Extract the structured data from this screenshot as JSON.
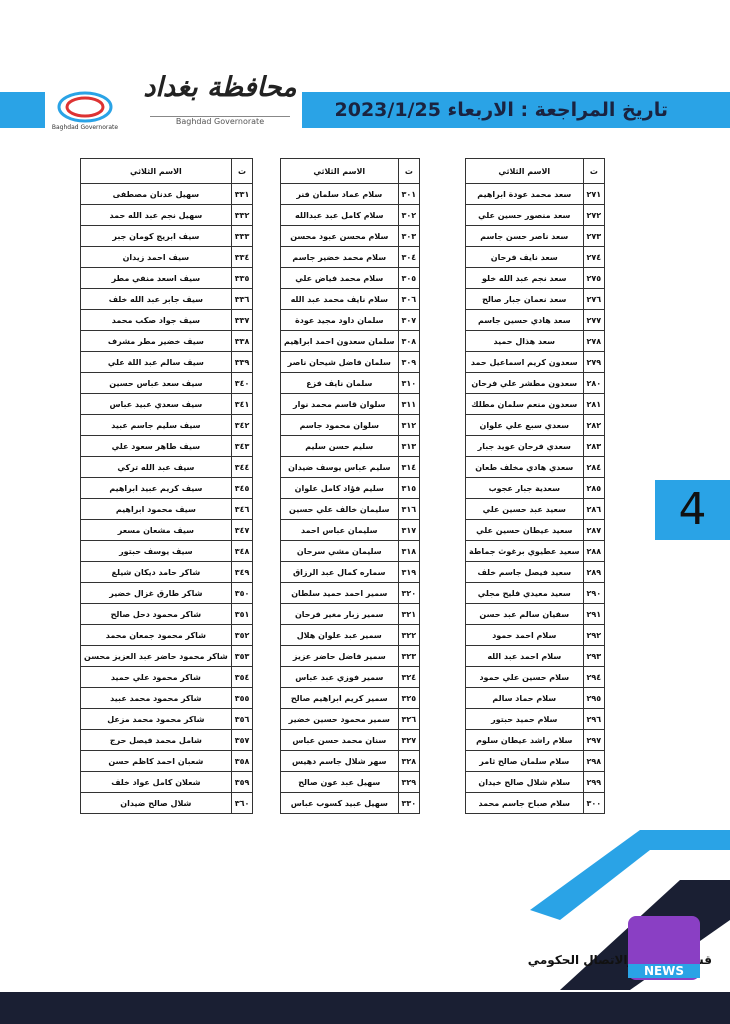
{
  "header": {
    "title": "تاريخ المراجعة : الاربعاء 2023/1/25",
    "logo_ar": "محافظة بغداد",
    "logo_en": "Baghdad Governorate"
  },
  "page_number": "4",
  "tables": [
    {
      "columns": [
        "ت",
        "الاسم الثلاثي"
      ],
      "rows": [
        [
          "٢٧١",
          "سعد محمد عودة ابراهيم"
        ],
        [
          "٢٧٢",
          "سعد منصور حسين علي"
        ],
        [
          "٢٧٣",
          "سعد ناصر حسن جاسم"
        ],
        [
          "٢٧٤",
          "سعد نايف فرحان"
        ],
        [
          "٢٧٥",
          "سعد نجم عبد الله خلو"
        ],
        [
          "٢٧٦",
          "سعد نعمان جبار صالح"
        ],
        [
          "٢٧٧",
          "سعد هادي حسين جاسم"
        ],
        [
          "٢٧٨",
          "سعد هذال حميد"
        ],
        [
          "٢٧٩",
          "سعدون كريم اسماعيل حمد"
        ],
        [
          "٢٨٠",
          "سعدون مطشر علي فرحان"
        ],
        [
          "٢٨١",
          "سعدون منعم سلمان مطلك"
        ],
        [
          "٢٨٢",
          "سعدي سبع علي علوان"
        ],
        [
          "٢٨٣",
          "سعدي فرحان عويد جبار"
        ],
        [
          "٢٨٤",
          "سعدي هادي مخلف طعان"
        ],
        [
          "٢٨٥",
          "سعدية جبار عجوب"
        ],
        [
          "٢٨٦",
          "سعيد عبد حسين علي"
        ],
        [
          "٢٨٧",
          "سعيد عيطان حسين علي"
        ],
        [
          "٢٨٨",
          "سعيد عطيوي برغوث جماطة"
        ],
        [
          "٢٨٩",
          "سعيد فيصل جاسم خلف"
        ],
        [
          "٢٩٠",
          "سعيد معيدي فليح مجلي"
        ],
        [
          "٢٩١",
          "سفيان سالم عبد حسن"
        ],
        [
          "٢٩٢",
          "سلام احمد حمود"
        ],
        [
          "٢٩٣",
          "سلام احمد عبد الله"
        ],
        [
          "٢٩٤",
          "سلام حسين علي حمود"
        ],
        [
          "٢٩٥",
          "سلام حماد سالم"
        ],
        [
          "٢٩٦",
          "سلام حميد حبتور"
        ],
        [
          "٢٩٧",
          "سلام راشد عيطان سلوم"
        ],
        [
          "٢٩٨",
          "سلام سلمان صالح ثامر"
        ],
        [
          "٢٩٩",
          "سلام شلال صالح خيدان"
        ],
        [
          "٣٠٠",
          "سلام صباح جاسم محمد"
        ]
      ]
    },
    {
      "columns": [
        "ت",
        "الاسم الثلاثي"
      ],
      "rows": [
        [
          "٣٠١",
          "سلام عماد سلمان فنر"
        ],
        [
          "٣٠٢",
          "سلام كامل عبد عبدالله"
        ],
        [
          "٣٠٣",
          "سلام محسن عبود محسن"
        ],
        [
          "٣٠٤",
          "سلام محمد خضير جاسم"
        ],
        [
          "٣٠٥",
          "سلام محمد فياض علي"
        ],
        [
          "٣٠٦",
          "سلام نايف محمد عبد الله"
        ],
        [
          "٣٠٧",
          "سلمان داود مجيد عودة"
        ],
        [
          "٣٠٨",
          "سلمان سعدون احمد ابراهيم"
        ],
        [
          "٣٠٩",
          "سلمان فاضل شيحان ناصر"
        ],
        [
          "٣١٠",
          "سلمان نايف فزع"
        ],
        [
          "٣١١",
          "سلوان قاسم محمد نوار"
        ],
        [
          "٣١٢",
          "سلوان محمود جاسم"
        ],
        [
          "٣١٣",
          "سليم حسن سليم"
        ],
        [
          "٣١٤",
          "سليم عباس يوسف ضيدان"
        ],
        [
          "٣١٥",
          "سليم فؤاد كامل علوان"
        ],
        [
          "٣١٦",
          "سليمان خالف علي حسين"
        ],
        [
          "٣١٧",
          "سليمان عباس احمد"
        ],
        [
          "٣١٨",
          "سليمان مشي سرحان"
        ],
        [
          "٣١٩",
          "سماره كمال عبد الرزاق"
        ],
        [
          "٣٢٠",
          "سمير احمد حميد سلطان"
        ],
        [
          "٣٢١",
          "سمير زبار مغير فرحان"
        ],
        [
          "٣٢٢",
          "سمير عبد علوان هلال"
        ],
        [
          "٣٢٣",
          "سمير فاضل حاضر عزيز"
        ],
        [
          "٣٢٤",
          "سمير فوزي عبد عباس"
        ],
        [
          "٣٢٥",
          "سمير كريم ابراهيم صالح"
        ],
        [
          "٣٢٦",
          "سمير محمود حسين خضير"
        ],
        [
          "٣٢٧",
          "سنان محمد حسن عباس"
        ],
        [
          "٣٢٨",
          "سهر شلال جاسم دهيس"
        ],
        [
          "٣٢٩",
          "سهيل عبد عون صالح"
        ],
        [
          "٣٣٠",
          "سهيل عبيد كسوب عباس"
        ]
      ]
    },
    {
      "columns": [
        "ت",
        "الاسم الثلاثي"
      ],
      "rows": [
        [
          "٣٣١",
          "سهيل عدنان مصطفى"
        ],
        [
          "٣٣٢",
          "سهيل نجم عبد الله حمد"
        ],
        [
          "٣٣٣",
          "سيف ابريج كومان جبر"
        ],
        [
          "٣٣٤",
          "سيف احمد زيدان"
        ],
        [
          "٣٣٥",
          "سيف اسعد منفي مطر"
        ],
        [
          "٣٣٦",
          "سيف جابر عبد الله خلف"
        ],
        [
          "٣٣٧",
          "سيف جواد صكب محمد"
        ],
        [
          "٣٣٨",
          "سيف خضير مطر مشرف"
        ],
        [
          "٣٣٩",
          "سيف سالم عبد اللة علي"
        ],
        [
          "٣٤٠",
          "سيف سعد عباس حسين"
        ],
        [
          "٣٤١",
          "سيف سعدي عبيد عباس"
        ],
        [
          "٣٤٢",
          "سيف سليم جاسم عبيد"
        ],
        [
          "٣٤٣",
          "سيف طاهر سعود علي"
        ],
        [
          "٣٤٤",
          "سيف عبد الله تركي"
        ],
        [
          "٣٤٥",
          "سيف كريم عبيد ابراهيم"
        ],
        [
          "٣٤٦",
          "سيف محمود ابراهيم"
        ],
        [
          "٣٤٧",
          "سيف مشعان مسعر"
        ],
        [
          "٣٤٨",
          "سيف يوسف حبتور"
        ],
        [
          "٣٤٩",
          "شاكر حامد ديكان شيلغ"
        ],
        [
          "٣٥٠",
          "شاكر طارق غزال خضير"
        ],
        [
          "٣٥١",
          "شاكر محمود دحل صالح"
        ],
        [
          "٣٥٢",
          "شاكر محمود جمعان محمد"
        ],
        [
          "٣٥٣",
          "شاكر محمود حاضر عبد العزيز محسن"
        ],
        [
          "٣٥٤",
          "شاكر محمود علي حميد"
        ],
        [
          "٣٥٥",
          "شاكر محمود محمد عبيد"
        ],
        [
          "٣٥٦",
          "شاكر محمود محمد مزعل"
        ],
        [
          "٣٥٧",
          "شامل محمد فيصل حرج"
        ],
        [
          "٣٥٨",
          "شعبان احمد كاظم حسن"
        ],
        [
          "٣٥٩",
          "شعلان كامل عواد خلف"
        ],
        [
          "٣٦٠",
          "شلال صالح ضيدان"
        ]
      ]
    }
  ],
  "footer": "قسم الاعلام والاتصال الحكومي",
  "brand": "NEWS"
}
